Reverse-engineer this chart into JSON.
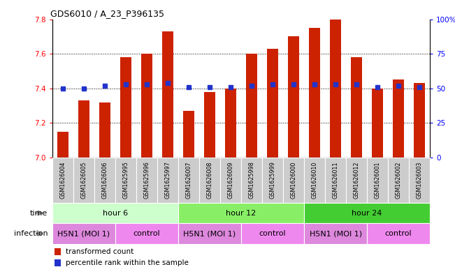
{
  "title": "GDS6010 / A_23_P396135",
  "samples": [
    "GSM1626004",
    "GSM1626005",
    "GSM1626006",
    "GSM1625995",
    "GSM1625996",
    "GSM1625997",
    "GSM1626007",
    "GSM1626008",
    "GSM1626009",
    "GSM1625998",
    "GSM1625999",
    "GSM1626000",
    "GSM1626010",
    "GSM1626011",
    "GSM1626012",
    "GSM1626001",
    "GSM1626002",
    "GSM1626003"
  ],
  "bar_values": [
    7.15,
    7.33,
    7.32,
    7.58,
    7.6,
    7.73,
    7.27,
    7.38,
    7.4,
    7.6,
    7.63,
    7.7,
    7.75,
    7.8,
    7.58,
    7.4,
    7.45,
    7.43
  ],
  "percentile_values": [
    50,
    50,
    52,
    53,
    53,
    54,
    51,
    51,
    51,
    52,
    53,
    53,
    53,
    53,
    53,
    51,
    52,
    51
  ],
  "bar_bottom": 7.0,
  "ylim": [
    7.0,
    7.8
  ],
  "yticks": [
    7.0,
    7.2,
    7.4,
    7.6,
    7.8
  ],
  "right_yticks": [
    0,
    25,
    50,
    75,
    100
  ],
  "right_ytick_labels": [
    "0",
    "25",
    "50",
    "75",
    "100%"
  ],
  "bar_color": "#cc2200",
  "percentile_color": "#2233cc",
  "time_colors": [
    "#ccffcc",
    "#88ee66",
    "#44cc33"
  ],
  "inf_h5n1_color": "#dd88dd",
  "inf_ctrl_color": "#ee88ee",
  "bar_width": 0.55,
  "tick_fontsize": 7.5,
  "sample_fontsize": 5.8,
  "row_fontsize": 8,
  "title_fontsize": 9,
  "time_groups": [
    {
      "label": "hour 6",
      "start": 0,
      "end": 6
    },
    {
      "label": "hour 12",
      "start": 6,
      "end": 12
    },
    {
      "label": "hour 24",
      "start": 12,
      "end": 18
    }
  ],
  "inf_groups": [
    {
      "label": "H5N1 (MOI 1)",
      "start": 0,
      "end": 3,
      "type": "h5n1"
    },
    {
      "label": "control",
      "start": 3,
      "end": 6,
      "type": "ctrl"
    },
    {
      "label": "H5N1 (MOI 1)",
      "start": 6,
      "end": 9,
      "type": "h5n1"
    },
    {
      "label": "control",
      "start": 9,
      "end": 12,
      "type": "ctrl"
    },
    {
      "label": "H5N1 (MOI 1)",
      "start": 12,
      "end": 15,
      "type": "h5n1"
    },
    {
      "label": "control",
      "start": 15,
      "end": 18,
      "type": "ctrl"
    }
  ]
}
